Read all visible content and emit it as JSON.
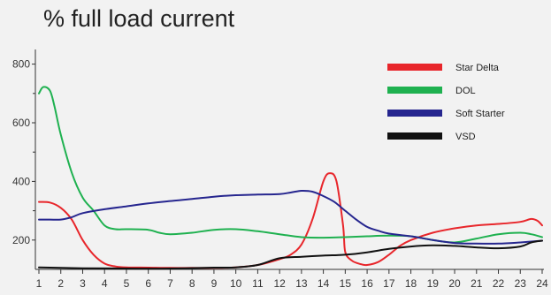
{
  "chart_data": {
    "type": "line",
    "title": "% full load current",
    "xlabel": "",
    "ylabel": "",
    "x": [
      1,
      2,
      3,
      4,
      5,
      6,
      7,
      8,
      9,
      10,
      11,
      12,
      13,
      14,
      15,
      16,
      17,
      18,
      19,
      20,
      21,
      22,
      23,
      24
    ],
    "xlim": [
      1,
      24
    ],
    "ylim": [
      100,
      850
    ],
    "yticks": [
      200,
      400,
      600,
      800
    ],
    "grid": false,
    "legend_position": "top-right",
    "series": [
      {
        "name": "Star Delta",
        "color": "#e8262b",
        "points": [
          [
            1,
            330
          ],
          [
            1.5,
            328
          ],
          [
            2,
            310
          ],
          [
            2.5,
            270
          ],
          [
            3,
            200
          ],
          [
            3.5,
            150
          ],
          [
            4,
            120
          ],
          [
            4.5,
            110
          ],
          [
            5,
            107
          ],
          [
            6,
            106
          ],
          [
            7,
            105
          ],
          [
            8,
            105
          ],
          [
            9,
            105
          ],
          [
            10,
            107
          ],
          [
            11,
            115
          ],
          [
            12,
            135
          ],
          [
            12.5,
            150
          ],
          [
            13,
            185
          ],
          [
            13.5,
            270
          ],
          [
            14,
            400
          ],
          [
            14.3,
            428
          ],
          [
            14.6,
            400
          ],
          [
            14.9,
            250
          ],
          [
            15,
            160
          ],
          [
            15.3,
            130
          ],
          [
            15.7,
            118
          ],
          [
            16,
            115
          ],
          [
            16.5,
            125
          ],
          [
            17,
            150
          ],
          [
            17.5,
            180
          ],
          [
            18,
            200
          ],
          [
            19,
            225
          ],
          [
            20,
            240
          ],
          [
            21,
            250
          ],
          [
            22,
            255
          ],
          [
            23,
            262
          ],
          [
            23.5,
            272
          ],
          [
            23.8,
            265
          ],
          [
            24,
            250
          ]
        ]
      },
      {
        "name": "DOL",
        "color": "#1fb150",
        "points": [
          [
            1,
            700
          ],
          [
            1.2,
            722
          ],
          [
            1.5,
            710
          ],
          [
            1.7,
            660
          ],
          [
            2,
            560
          ],
          [
            2.5,
            430
          ],
          [
            3,
            345
          ],
          [
            3.5,
            300
          ],
          [
            4,
            250
          ],
          [
            4.5,
            237
          ],
          [
            5,
            237
          ],
          [
            6,
            235
          ],
          [
            6.5,
            225
          ],
          [
            7,
            220
          ],
          [
            8,
            225
          ],
          [
            9,
            235
          ],
          [
            10,
            237
          ],
          [
            11,
            230
          ],
          [
            12,
            220
          ],
          [
            13,
            210
          ],
          [
            14,
            208
          ],
          [
            15,
            210
          ],
          [
            16,
            213
          ],
          [
            17,
            215
          ],
          [
            18,
            213
          ],
          [
            19,
            200
          ],
          [
            20,
            192
          ],
          [
            21,
            205
          ],
          [
            22,
            220
          ],
          [
            23,
            225
          ],
          [
            23.5,
            220
          ],
          [
            24,
            210
          ]
        ]
      },
      {
        "name": "Soft Starter",
        "color": "#26268f",
        "points": [
          [
            1,
            270
          ],
          [
            1.5,
            270
          ],
          [
            2,
            270
          ],
          [
            2.5,
            278
          ],
          [
            3,
            292
          ],
          [
            4,
            305
          ],
          [
            5,
            315
          ],
          [
            6,
            325
          ],
          [
            7,
            333
          ],
          [
            8,
            340
          ],
          [
            9,
            348
          ],
          [
            10,
            353
          ],
          [
            11,
            355
          ],
          [
            12,
            357
          ],
          [
            12.5,
            362
          ],
          [
            13,
            368
          ],
          [
            13.5,
            365
          ],
          [
            14,
            350
          ],
          [
            14.5,
            330
          ],
          [
            15,
            300
          ],
          [
            15.5,
            270
          ],
          [
            16,
            245
          ],
          [
            16.5,
            232
          ],
          [
            17,
            222
          ],
          [
            18,
            213
          ],
          [
            19,
            200
          ],
          [
            20,
            190
          ],
          [
            21,
            188
          ],
          [
            22,
            188
          ],
          [
            23,
            192
          ],
          [
            24,
            198
          ]
        ]
      },
      {
        "name": "VSD",
        "color": "#111111",
        "points": [
          [
            1,
            107
          ],
          [
            3,
            104
          ],
          [
            5,
            103
          ],
          [
            7,
            103
          ],
          [
            9,
            106
          ],
          [
            10,
            107
          ],
          [
            11,
            115
          ],
          [
            12,
            138
          ],
          [
            13,
            143
          ],
          [
            14,
            147
          ],
          [
            15,
            150
          ],
          [
            16,
            158
          ],
          [
            17,
            170
          ],
          [
            18,
            178
          ],
          [
            19,
            182
          ],
          [
            20,
            180
          ],
          [
            21,
            175
          ],
          [
            22,
            172
          ],
          [
            23,
            178
          ],
          [
            23.5,
            192
          ],
          [
            24,
            198
          ]
        ]
      }
    ]
  }
}
